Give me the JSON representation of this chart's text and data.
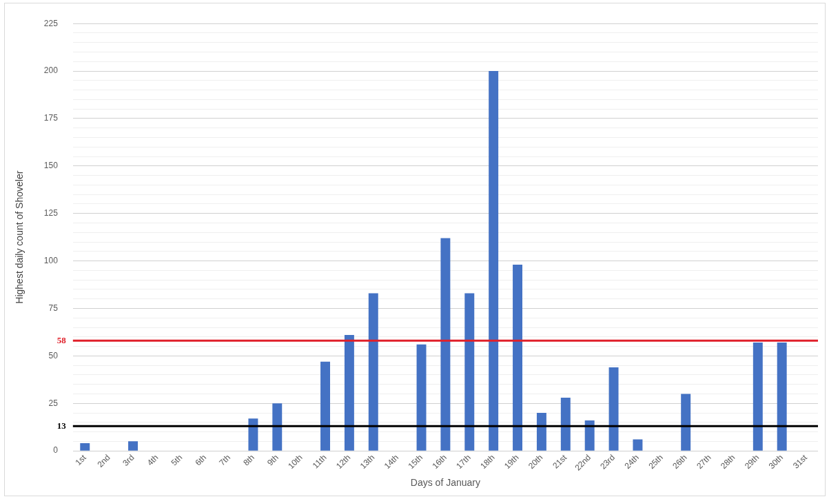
{
  "chart_data": {
    "type": "bar",
    "xlabel": "Days of January",
    "ylabel": "Highest daily count of Shoveler",
    "categories": [
      "1st",
      "2nd",
      "3rd",
      "4th",
      "5th",
      "6th",
      "7th",
      "8th",
      "9th",
      "10th",
      "11th",
      "12th",
      "13th",
      "14th",
      "15th",
      "16th",
      "17th",
      "18th",
      "19th",
      "20th",
      "21st",
      "22nd",
      "23rd",
      "24th",
      "25th",
      "26th",
      "27th",
      "28th",
      "29th",
      "30th",
      "31st"
    ],
    "values": [
      4,
      0,
      5,
      0,
      0,
      0,
      0,
      17,
      25,
      0,
      47,
      61,
      83,
      0,
      56,
      112,
      83,
      200,
      98,
      20,
      28,
      16,
      44,
      6,
      0,
      30,
      0,
      0,
      57,
      57,
      0
    ],
    "color": "#4472c4",
    "ylim": [
      0,
      225
    ],
    "yticks": [
      0,
      {
        "value": 5,
        "label": null
      },
      {
        "value": 10,
        "label": null
      },
      {
        "value": 15,
        "label": null
      },
      {
        "value": 20,
        "label": null
      },
      25,
      {
        "value": 30,
        "label": null
      },
      {
        "value": 35,
        "label": null
      },
      {
        "value": 40,
        "label": null
      },
      {
        "value": 45,
        "label": null
      },
      50,
      {
        "value": 55,
        "label": null
      },
      {
        "value": 60,
        "label": null
      },
      {
        "value": 65,
        "label": null
      },
      {
        "value": 70,
        "label": null
      },
      75,
      {
        "value": 80,
        "label": null
      },
      {
        "value": 85,
        "label": null
      },
      {
        "value": 90,
        "label": null
      },
      {
        "value": 95,
        "label": null
      },
      100,
      {
        "value": 105,
        "label": null
      },
      {
        "value": 110,
        "label": null
      },
      {
        "value": 115,
        "label": null
      },
      {
        "value": 120,
        "label": null
      },
      125,
      {
        "value": 130,
        "label": null
      },
      {
        "value": 135,
        "label": null
      },
      {
        "value": 140,
        "label": null
      },
      {
        "value": 145,
        "label": null
      },
      150,
      {
        "value": 155,
        "label": null
      },
      {
        "value": 160,
        "label": null
      },
      {
        "value": 165,
        "label": null
      },
      {
        "value": 170,
        "label": null
      },
      175,
      {
        "value": 180,
        "label": null
      },
      {
        "value": 185,
        "label": null
      },
      {
        "value": 190,
        "label": null
      },
      {
        "value": 195,
        "label": null
      },
      200,
      {
        "value": 205,
        "label": null
      },
      {
        "value": 210,
        "label": null
      },
      {
        "value": 215,
        "label": null
      },
      {
        "value": 220,
        "label": null
      },
      225
    ],
    "grid": "y",
    "ref_lines": [
      {
        "axis": "y",
        "value": 58,
        "label": "58",
        "color": "#e0202a"
      },
      {
        "axis": "y",
        "value": 13,
        "label": "13",
        "color": "#000000"
      }
    ]
  }
}
